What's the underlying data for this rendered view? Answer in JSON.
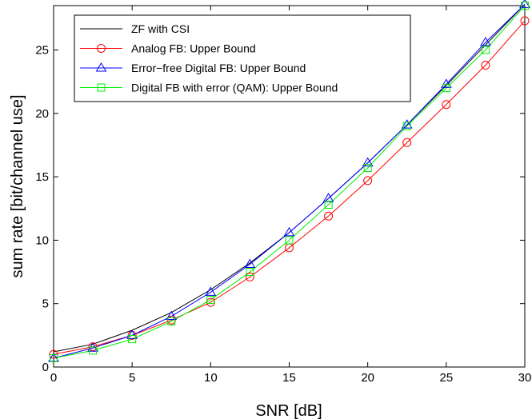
{
  "chart_data": {
    "type": "line",
    "xlabel": "SNR [dB]",
    "ylabel": "sum rate [bit/channel use]",
    "xlim": [
      0,
      30
    ],
    "ylim": [
      0,
      28.5
    ],
    "xticks": [
      0,
      5,
      10,
      15,
      20,
      25,
      30
    ],
    "yticks": [
      0,
      5,
      10,
      15,
      20,
      25
    ],
    "grid": false,
    "legend_position": "top-left",
    "x": [
      0,
      2.5,
      5,
      7.5,
      10,
      12.5,
      15,
      17.5,
      20,
      22.5,
      25,
      27.5,
      30
    ],
    "series": [
      {
        "name": "ZF with CSI",
        "color": "#000000",
        "marker": "none",
        "values": [
          1.2,
          1.8,
          2.9,
          4.3,
          6.1,
          8.2,
          10.6,
          13.3,
          16.1,
          19.1,
          22.2,
          25.4,
          28.6
        ]
      },
      {
        "name": "Analog FB: Upper Bound",
        "color": "#ff0000",
        "marker": "circle",
        "values": [
          1.0,
          1.6,
          2.5,
          3.7,
          5.1,
          7.1,
          9.4,
          11.9,
          14.7,
          17.7,
          20.7,
          23.8,
          27.3
        ]
      },
      {
        "name": "Error−free Digital FB: Upper Bound",
        "color": "#0000ff",
        "marker": "triangle",
        "values": [
          0.7,
          1.5,
          2.5,
          4.0,
          5.9,
          8.1,
          10.6,
          13.3,
          16.1,
          19.1,
          22.3,
          25.6,
          28.6
        ]
      },
      {
        "name": "Digital FB with error (QAM): Upper Bound",
        "color": "#00ee00",
        "marker": "square",
        "values": [
          0.7,
          1.3,
          2.2,
          3.6,
          5.3,
          7.5,
          10.0,
          12.8,
          15.7,
          19.0,
          22.0,
          25.0,
          28.5
        ]
      }
    ]
  }
}
